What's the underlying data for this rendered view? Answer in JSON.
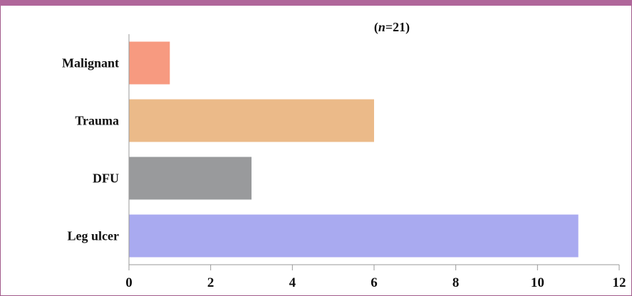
{
  "chart_data": {
    "type": "bar",
    "orientation": "horizontal",
    "title": "(n=21)",
    "title_prefix": "(",
    "title_var": "n",
    "title_suffix": "=21)",
    "categories": [
      "Malignant",
      "Trauma",
      "DFU",
      "Leg ulcer"
    ],
    "values": [
      1,
      6,
      3,
      11
    ],
    "colors": [
      "#f79a80",
      "#ebba89",
      "#999a9c",
      "#a9aaf0"
    ],
    "xlim": [
      0,
      12
    ],
    "xticks": [
      0,
      2,
      4,
      6,
      8,
      10,
      12
    ],
    "xlabel": "",
    "ylabel": "",
    "grid": false,
    "legend": "none"
  },
  "theme": {
    "header_color": "#b0669a",
    "border_color": "#a15a8b",
    "axis_color": "#9a9a9a"
  }
}
